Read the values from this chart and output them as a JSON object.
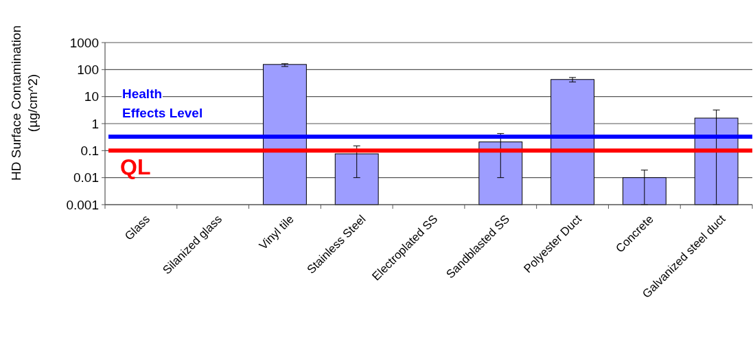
{
  "chart_data": {
    "type": "bar",
    "ylabel": "HD Surface Contamination\n(µg/cm^2)",
    "categories": [
      "Glass",
      "Silanized glass",
      "Vinyl tile",
      "Stainless Steel",
      "Electroplated SS",
      "Sandblasted SS",
      "Polyester Duct",
      "Concrete",
      "Galvanized steel duct"
    ],
    "values": [
      null,
      null,
      155,
      0.076,
      null,
      0.21,
      43,
      0.01,
      1.6
    ],
    "errors": [
      null,
      null,
      [
        130,
        165
      ],
      [
        0.01,
        0.15
      ],
      null,
      [
        0.01,
        0.43
      ],
      [
        35,
        51
      ],
      [
        0.001,
        0.019
      ],
      [
        0.001,
        3.2
      ]
    ],
    "color": "#9d9dff",
    "log": true,
    "ylim": [
      0.001,
      1000
    ],
    "yticks": [
      0.001,
      0.01,
      0.1,
      1,
      10,
      100,
      1000
    ],
    "grid": "y",
    "ref_lines": [
      {
        "axis": "y",
        "value": 0.33,
        "label": "Health\nEffects Level",
        "color": "#0000ff"
      },
      {
        "axis": "y",
        "value": 0.1,
        "label": "QL",
        "color": "#ff0000"
      }
    ]
  }
}
